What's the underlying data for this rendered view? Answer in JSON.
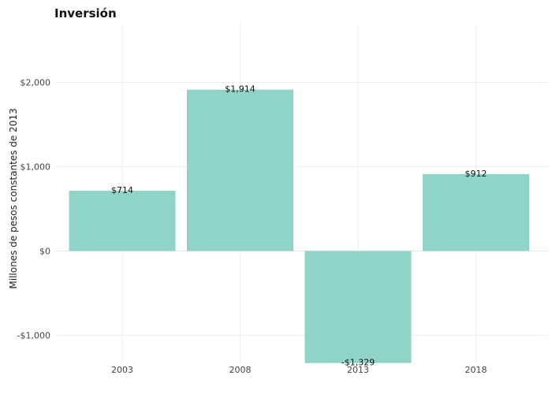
{
  "chart_data": {
    "type": "bar",
    "title": "Inversión",
    "xlabel": "",
    "ylabel": "Millones de pesos constantes de 2013",
    "categories": [
      "2003",
      "2008",
      "2013",
      "2018"
    ],
    "values": [
      714,
      1914,
      -1329,
      912
    ],
    "data_labels": [
      "$714",
      "$1,914",
      "-$1,329",
      "$912"
    ],
    "ylim": [
      -1300,
      2500
    ],
    "yticks": [
      -1000,
      0,
      1000,
      2000
    ],
    "ytick_labels": [
      "-$1,000",
      "$0",
      "$1,000",
      "$2,000"
    ],
    "grid": true,
    "legend": "none",
    "bar_color": "#8fd4c7"
  }
}
